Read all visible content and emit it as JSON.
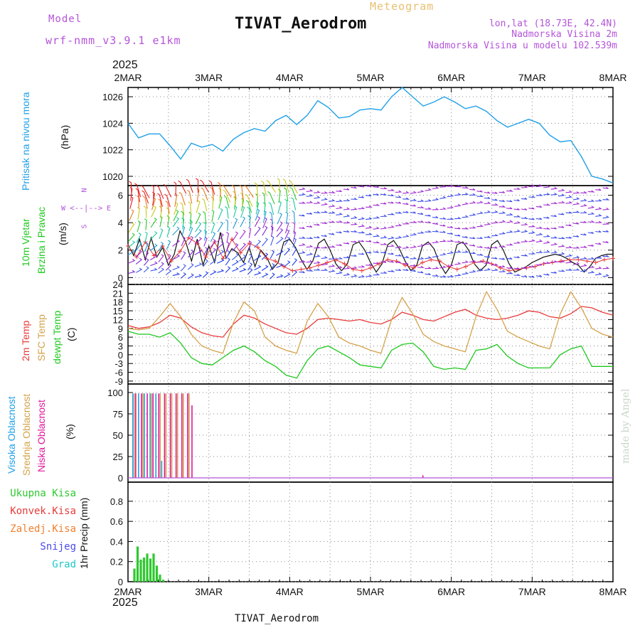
{
  "header": {
    "model_label": "Model",
    "model_name": "wrf-nmm_v3.9.1 e1km",
    "subtitle": "Meteogram",
    "title": "TIVAT_Aerodrom",
    "lonlat": "lon,lat (18.73E, 42.4N)",
    "altitude": "Nadmorska Visina 2m",
    "model_altitude": "Nadmorska Visina u modelu 102.539m",
    "footer": "TIVAT_Aerodrom",
    "credit": "made by Angel"
  },
  "colors": {
    "pressure": "#1fa0e8",
    "temp2m": "#e83a3a",
    "sfc": "#d4a24a",
    "dewpt": "#1ec81e",
    "high_cloud": "#1fa0e8",
    "mid_cloud": "#d4a24a",
    "low_cloud": "#e0179a",
    "precip": "#2ec82e",
    "label_purple": "#b455d8"
  },
  "chart_data": [
    {
      "type": "line",
      "panel": "pressure",
      "ylabel_1": "Pritisak na nivou mora",
      "ylabel_2": "(hPa)",
      "yticks": [
        1020,
        1022,
        1024,
        1026
      ],
      "ylim": [
        1019.3,
        1026.7
      ],
      "x": [
        0,
        3,
        6,
        9,
        12,
        15,
        18,
        21,
        24,
        27,
        30,
        33,
        36,
        39,
        42,
        45,
        48,
        51,
        54,
        57,
        60,
        63,
        66,
        69,
        72,
        75,
        78,
        81,
        84,
        87,
        90,
        93,
        96,
        99,
        102,
        105,
        108,
        111,
        114,
        117,
        120,
        123,
        126,
        129,
        132,
        135,
        138,
        141,
        144,
        147,
        150,
        153,
        156,
        159,
        162,
        165,
        168
      ],
      "values": [
        1024.0,
        1022.9,
        1023.2,
        1023.2,
        1022.3,
        1021.3,
        1022.5,
        1022.2,
        1022.4,
        1021.9,
        1022.8,
        1023.3,
        1023.6,
        1023.4,
        1024.2,
        1024.6,
        1023.9,
        1024.6,
        1025.7,
        1025.2,
        1024.4,
        1024.5,
        1025.0,
        1025.1,
        1025.0,
        1026.0,
        1026.7,
        1026.0,
        1025.3,
        1025.6,
        1026.0,
        1025.6,
        1025.1,
        1025.3,
        1024.9,
        1024.2,
        1023.7,
        1024.0,
        1024.3,
        1024.0,
        1023.1,
        1022.6,
        1022.7,
        1021.5,
        1020.0,
        1019.8,
        1019.5,
        null,
        null,
        null,
        null,
        null,
        null,
        null,
        null,
        null,
        null
      ]
    },
    {
      "type": "line",
      "panel": "wind",
      "ylabel_1": "10m Vjetar",
      "ylabel_2": "Brzina i Pravac",
      "ylabel_3": "(m/s)",
      "compass": {
        "n": "N",
        "s": "S",
        "e": "E",
        "w": "W"
      },
      "yticks": [
        0,
        2,
        4,
        6
      ],
      "ylim": [
        -0.5,
        6.7
      ],
      "series": [
        {
          "name": "speed",
          "x": [
            0,
            2,
            4,
            6,
            8,
            10,
            12,
            14,
            16,
            18,
            20,
            22,
            24,
            26,
            28,
            30,
            32,
            34,
            36,
            38,
            40,
            42,
            44,
            46,
            48,
            50,
            52,
            54,
            56,
            58,
            60,
            62,
            64,
            66,
            68,
            70,
            72,
            74,
            76,
            78,
            80,
            82,
            84,
            86,
            88,
            90,
            92,
            94,
            96,
            98,
            100,
            102,
            104,
            106,
            108,
            110,
            112,
            114,
            116,
            118,
            120,
            122,
            124,
            126,
            128,
            130,
            132,
            134,
            136,
            138,
            140,
            142,
            144,
            146,
            148,
            150,
            152,
            154,
            156,
            158,
            160,
            162,
            164,
            166,
            168
          ],
          "values": [
            2.4,
            1.6,
            2.8,
            1.3,
            2.9,
            1.5,
            2.2,
            0.9,
            1.7,
            3.4,
            2.6,
            1.2,
            2.8,
            0.9,
            2.3,
            1.1,
            3.3,
            1.4,
            2.1,
            1.8,
            1.1,
            2.2,
            0.8,
            2.0,
            1.5,
            0.6,
            1.1,
            2.6,
            2.8,
            2.2,
            1.3,
            0.6,
            1.2,
            2.5,
            2.8,
            2.0,
            1.0,
            0.5,
            1.0,
            2.4,
            2.6,
            2.0,
            1.1,
            0.4,
            1.0,
            2.4,
            2.7,
            2.1,
            1.2,
            0.5,
            0.9,
            2.3,
            2.6,
            2.1,
            1.0,
            0.3,
            0.9,
            2.4,
            2.6,
            2.0,
            1.0,
            0.5,
            0.9,
            2.4,
            2.7,
            2.0,
            1.0,
            0.4,
            0.6,
            0.8,
            1.1,
            1.3,
            1.5,
            1.6,
            1.7,
            1.6,
            1.4,
            1.1,
            0.9,
            0.4,
            0.8,
            1.4,
            1.6,
            1.7,
            1.7
          ]
        },
        {
          "name": "hourly_mean",
          "x": [
            0,
            3,
            6,
            9,
            12,
            15,
            18,
            21,
            24,
            27,
            30,
            33,
            36,
            39,
            42,
            45,
            48,
            51,
            54,
            57,
            60,
            63,
            66,
            69,
            72,
            75,
            78,
            81,
            84,
            87,
            90,
            93,
            96,
            99,
            102,
            105,
            108,
            111,
            114,
            117,
            120,
            123,
            126,
            129,
            132,
            135,
            138,
            141,
            144,
            147,
            150,
            153,
            156,
            159,
            162,
            165,
            168
          ],
          "values": [
            2.3,
            1.5,
            2.6,
            1.6,
            2.3,
            1.2,
            1.9,
            2.9,
            2.5,
            1.5,
            2.6,
            1.4,
            2.8,
            1.8,
            2.5,
            2.2,
            1.4,
            1.2,
            0.8,
            0.5,
            0.6,
            0.7,
            0.9,
            1.1,
            1.3,
            1.0,
            0.6,
            0.5,
            0.7,
            1.0,
            1.3,
            1.2,
            0.9,
            0.7,
            1.1,
            1.3,
            1.2,
            0.8,
            0.6,
            0.8,
            1.1,
            1.2,
            1.0,
            0.7,
            0.5,
            0.6,
            0.7,
            0.8,
            1.0,
            1.1,
            1.2,
            1.3,
            1.3,
            1.2,
            1.1,
            1.3,
            1.4
          ]
        }
      ]
    },
    {
      "type": "line",
      "panel": "temperature",
      "ylabel_1": "2m Temp",
      "ylabel_2": "SFC Temp",
      "ylabel_3": "dewpt Temp",
      "ylabel_4": "(C)",
      "yticks": [
        -9,
        -6,
        -3,
        0,
        3,
        6,
        9,
        12,
        15,
        18,
        21,
        24
      ],
      "ylim": [
        -10,
        24
      ],
      "x": [
        0,
        3,
        6,
        9,
        12,
        15,
        18,
        21,
        24,
        27,
        30,
        33,
        36,
        39,
        42,
        45,
        48,
        51,
        54,
        57,
        60,
        63,
        66,
        69,
        72,
        75,
        78,
        81,
        84,
        87,
        90,
        93,
        96,
        99,
        102,
        105,
        108,
        111,
        114,
        117,
        120,
        123,
        126,
        129,
        132,
        135,
        138,
        141,
        144,
        147,
        150,
        153,
        156,
        159,
        162,
        165,
        168
      ],
      "series": [
        {
          "name": "2m",
          "values": [
            10.0,
            9.0,
            9.5,
            11.0,
            13.5,
            12.5,
            9.5,
            7.5,
            6.5,
            6.0,
            10.5,
            13.5,
            12.5,
            10.5,
            9.0,
            7.5,
            7.0,
            9.0,
            12.0,
            12.5,
            12.0,
            11.5,
            12.0,
            11.0,
            10.5,
            12.0,
            14.5,
            13.5,
            12.0,
            11.5,
            13.0,
            14.5,
            15.5,
            13.5,
            12.5,
            12.0,
            12.5,
            13.5,
            15.0,
            14.5,
            13.0,
            12.5,
            14.0,
            16.5,
            16.0,
            14.5,
            13.5,
            null,
            null,
            null,
            null,
            null,
            null,
            null,
            null,
            null,
            null
          ]
        },
        {
          "name": "SFC",
          "values": [
            9.0,
            8.5,
            9.0,
            13.0,
            17.5,
            13.0,
            7.0,
            3.0,
            1.5,
            0.5,
            11.0,
            18.0,
            15.0,
            6.0,
            3.0,
            1.5,
            0.5,
            11.5,
            17.5,
            13.0,
            6.0,
            4.0,
            3.0,
            1.5,
            0.5,
            12.0,
            19.5,
            14.0,
            7.0,
            4.5,
            3.0,
            2.0,
            1.0,
            13.0,
            21.5,
            15.5,
            8.0,
            6.0,
            4.5,
            3.0,
            2.0,
            14.0,
            21.5,
            16.0,
            9.0,
            7.0,
            6.0,
            null,
            null,
            null,
            null,
            null,
            null,
            null,
            null,
            null,
            null
          ]
        },
        {
          "name": "dewpt",
          "values": [
            8.0,
            7.0,
            7.0,
            6.0,
            7.5,
            4.0,
            -1.0,
            -3.0,
            -3.5,
            -1.0,
            1.5,
            3.0,
            1.0,
            -2.0,
            -4.0,
            -7.0,
            -8.0,
            -2.0,
            2.0,
            3.0,
            1.0,
            -1.0,
            -3.5,
            -4.0,
            -4.5,
            1.5,
            3.5,
            4.0,
            1.0,
            -4.0,
            -5.0,
            -4.5,
            -5.0,
            1.5,
            2.0,
            3.5,
            -0.5,
            -3.0,
            -4.5,
            -4.5,
            -4.5,
            0.0,
            2.0,
            3.0,
            -4.0,
            -4.0,
            -4.0,
            null,
            null,
            null,
            null,
            null,
            null,
            null,
            null,
            null,
            null
          ]
        }
      ]
    },
    {
      "type": "bar",
      "panel": "clouds",
      "ylabel_1": "Visoka Oblacnost",
      "ylabel_2": "Srednja Oblacnost",
      "ylabel_3": "Niska Oblacnost",
      "ylabel_4": "(%)",
      "yticks": [
        0,
        25,
        50,
        75,
        100
      ],
      "ylim": [
        -5,
        110
      ],
      "series": [
        {
          "name": "Visoka",
          "x": [
            0.5,
            2.5,
            4.5,
            6.5,
            8.5,
            10.5
          ],
          "values": [
            99,
            99,
            99,
            99,
            99,
            20
          ]
        },
        {
          "name": "Srednja",
          "x": [
            1.0,
            4.0,
            7.0,
            10.0,
            12.0,
            14.0,
            16.0,
            18.0,
            20.0
          ],
          "values": [
            99,
            99,
            99,
            99,
            99,
            99,
            99,
            99,
            99
          ]
        },
        {
          "name": "Niska",
          "x": [
            1.5,
            3.5,
            5.5,
            7.5,
            9.5,
            11.5,
            13.5,
            15.5,
            17.5,
            19.5,
            21.0,
            101.0
          ],
          "values": [
            99,
            99,
            99,
            99,
            99,
            99,
            99,
            99,
            99,
            99,
            85,
            3
          ]
        }
      ]
    },
    {
      "type": "bar",
      "panel": "precip",
      "ylabel": "1hr Precip (mm)",
      "legend": [
        "Ukupna Kisa",
        "Konvek.Kisa",
        "Zaledj.Kisa",
        "Snijeg",
        "Grad"
      ],
      "legend_colors": [
        "#2ec82e",
        "#e83a3a",
        "#f08030",
        "#4a4ae8",
        "#1ec8c8"
      ],
      "yticks": [
        0,
        0.2,
        0.4,
        0.6,
        0.8
      ],
      "ylim": [
        0,
        0.99
      ],
      "x": [
        2,
        3,
        4,
        5,
        6,
        7,
        8,
        9,
        10,
        11
      ],
      "values": [
        0.13,
        0.35,
        0.22,
        0.24,
        0.28,
        0.23,
        0.28,
        0.16,
        0.07,
        0.02
      ]
    }
  ],
  "xaxis": {
    "year": "2025",
    "ticks": [
      "2MAR",
      "3MAR",
      "4MAR",
      "5MAR",
      "6MAR",
      "7MAR",
      "8MAR"
    ],
    "hours": [
      0,
      24,
      48,
      72,
      96,
      120,
      144
    ]
  }
}
